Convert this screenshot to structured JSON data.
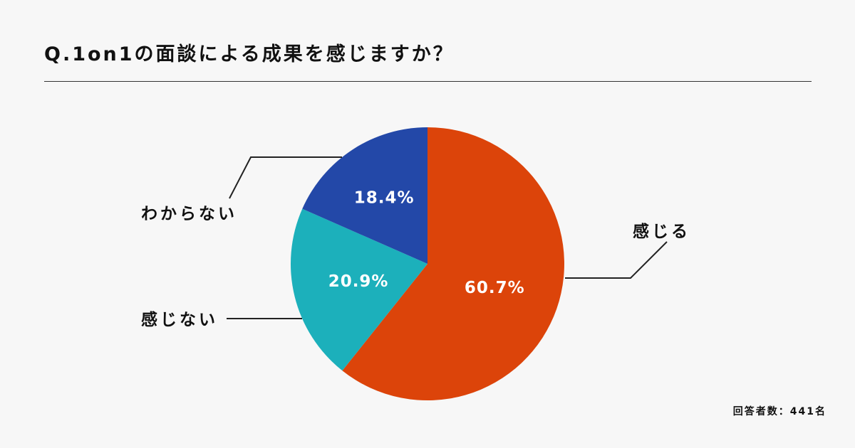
{
  "title": "Q.1on1の面談による成果を感じますか？",
  "respondents": "回答者数：441名",
  "chart_data": {
    "type": "pie",
    "title": "Q.1on1の面談による成果を感じますか？",
    "slices": [
      {
        "label": "感じる",
        "value": 60.7,
        "display": "60.7%",
        "color": "#dc440a"
      },
      {
        "label": "感じない",
        "value": 20.9,
        "display": "20.9%",
        "color": "#1cb0bb"
      },
      {
        "label": "わからない",
        "value": 18.4,
        "display": "18.4%",
        "color": "#2348a8"
      }
    ],
    "start": "12 o'clock",
    "direction": "clockwise",
    "legend": "none"
  }
}
